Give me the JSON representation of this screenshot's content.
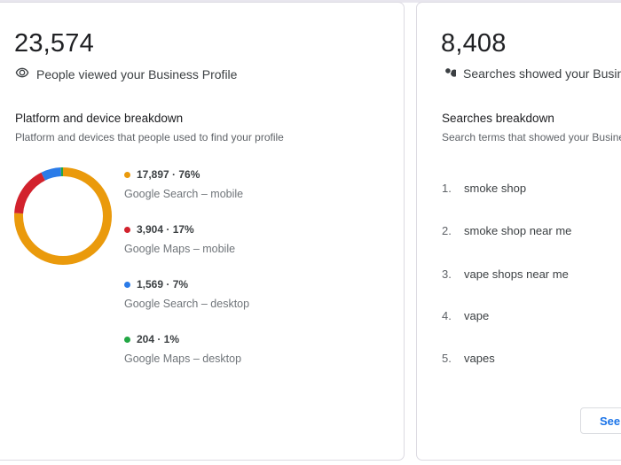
{
  "views_card": {
    "total": "23,574",
    "label": "People viewed your Business Profile",
    "icon": "eye-icon",
    "breakdown_title": "Platform and device breakdown",
    "breakdown_subtitle": "Platform and devices that people used to find your profile",
    "legend": [
      {
        "value": "17,897 · 76%",
        "label": "Google Search – mobile",
        "color": "#ea9a0c"
      },
      {
        "value": "3,904 · 17%",
        "label": "Google Maps – mobile",
        "color": "#d2222d"
      },
      {
        "value": "1,569 · 7%",
        "label": "Google Search – desktop",
        "color": "#2a7be8"
      },
      {
        "value": "204 · 1%",
        "label": "Google Maps – desktop",
        "color": "#22a744"
      }
    ]
  },
  "searches_card": {
    "total": "8,408",
    "label": "Searches showed your Business Profile",
    "icon": "search-icon",
    "breakdown_title": "Searches breakdown",
    "breakdown_subtitle": "Search terms that showed your Business Profile",
    "terms": [
      {
        "rank": "1.",
        "term": "smoke shop"
      },
      {
        "rank": "2.",
        "term": "smoke shop near me"
      },
      {
        "rank": "3.",
        "term": "vape shops near me"
      },
      {
        "rank": "4.",
        "term": "vape"
      },
      {
        "rank": "5.",
        "term": "vapes"
      }
    ],
    "see_button": "See"
  },
  "chart_data": {
    "type": "pie",
    "variant": "donut",
    "title": "Platform and device breakdown",
    "categories": [
      "Google Search – mobile",
      "Google Maps – mobile",
      "Google Search – desktop",
      "Google Maps – desktop"
    ],
    "values": [
      17897,
      3904,
      1569,
      204
    ],
    "percent": [
      76,
      17,
      7,
      1
    ],
    "colors": [
      "#ea9a0c",
      "#d2222d",
      "#2a7be8",
      "#22a744"
    ],
    "legend_position": "right"
  }
}
